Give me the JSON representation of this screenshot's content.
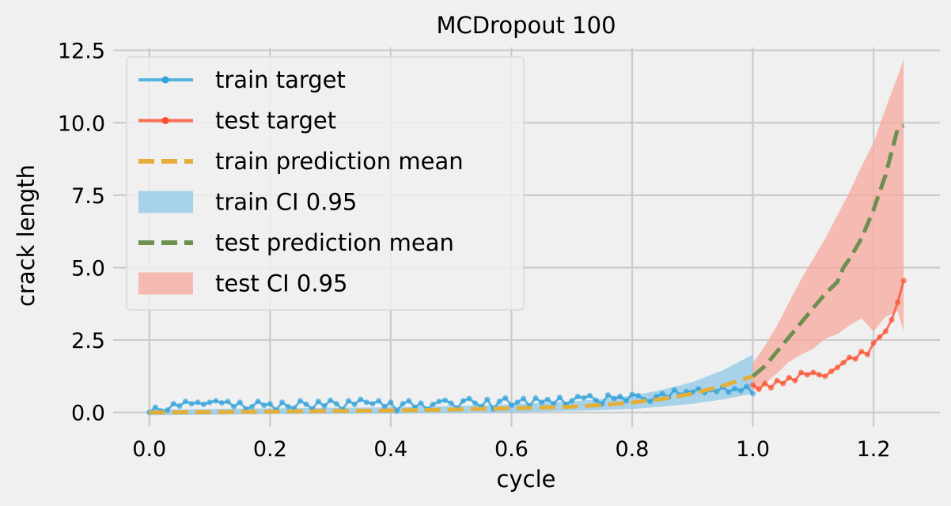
{
  "chart_data": {
    "type": "line",
    "title": "MCDropout 100",
    "xlabel": "cycle",
    "ylabel": "crack length",
    "xlim": [
      -0.06,
      1.31
    ],
    "ylim": [
      -0.5,
      12.6
    ],
    "xticks": [
      "0.0",
      "0.2",
      "0.4",
      "0.6",
      "0.8",
      "1.0",
      "1.2"
    ],
    "xtick_values": [
      0.0,
      0.2,
      0.4,
      0.6,
      0.8,
      1.0,
      1.2
    ],
    "yticks": [
      "0.0",
      "2.5",
      "5.0",
      "7.5",
      "10.0",
      "12.5"
    ],
    "ytick_values": [
      0.0,
      2.5,
      5.0,
      7.5,
      10.0,
      12.5
    ],
    "grid": true,
    "legend_position": "top-left",
    "colors": {
      "train_target": "#30a2da",
      "test_target": "#fc4f30",
      "train_prediction": "#e5ae38",
      "train_ci": "#8fc8e8",
      "test_prediction": "#6d904f",
      "test_ci": "#f7a89c",
      "background": "#f0f0f0",
      "grid": "#cbcbcb"
    },
    "legend": [
      {
        "key": "train_target",
        "label": "train target",
        "style": "line-marker"
      },
      {
        "key": "test_target",
        "label": "test target",
        "style": "line-marker"
      },
      {
        "key": "train_prediction",
        "label": "train prediction mean",
        "style": "dashed"
      },
      {
        "key": "train_ci",
        "label": "train CI 0.95",
        "style": "patch"
      },
      {
        "key": "test_prediction",
        "label": "test prediction mean",
        "style": "dashed"
      },
      {
        "key": "test_ci",
        "label": "test CI 0.95",
        "style": "patch"
      }
    ],
    "series": [
      {
        "key": "train_target",
        "name": "train target",
        "x": [
          0.0,
          0.01,
          0.02,
          0.03,
          0.04,
          0.05,
          0.06,
          0.07,
          0.08,
          0.09,
          0.1,
          0.11,
          0.12,
          0.13,
          0.14,
          0.15,
          0.16,
          0.17,
          0.18,
          0.19,
          0.2,
          0.21,
          0.22,
          0.23,
          0.24,
          0.25,
          0.26,
          0.27,
          0.28,
          0.29,
          0.3,
          0.31,
          0.32,
          0.33,
          0.34,
          0.35,
          0.36,
          0.37,
          0.38,
          0.39,
          0.4,
          0.41,
          0.42,
          0.43,
          0.44,
          0.45,
          0.46,
          0.47,
          0.48,
          0.49,
          0.5,
          0.51,
          0.52,
          0.53,
          0.54,
          0.55,
          0.56,
          0.57,
          0.58,
          0.59,
          0.6,
          0.61,
          0.62,
          0.63,
          0.64,
          0.65,
          0.66,
          0.67,
          0.68,
          0.69,
          0.7,
          0.71,
          0.72,
          0.73,
          0.74,
          0.75,
          0.76,
          0.77,
          0.78,
          0.79,
          0.8,
          0.81,
          0.82,
          0.83,
          0.84,
          0.85,
          0.86,
          0.87,
          0.88,
          0.89,
          0.9,
          0.91,
          0.92,
          0.93,
          0.94,
          0.95,
          0.96,
          0.97,
          0.98,
          0.99,
          1.0
        ],
        "y": [
          0.0,
          0.18,
          0.05,
          0.08,
          0.3,
          0.22,
          0.38,
          0.3,
          0.35,
          0.28,
          0.35,
          0.4,
          0.33,
          0.38,
          0.2,
          0.35,
          0.12,
          0.2,
          0.38,
          0.25,
          0.3,
          0.08,
          0.35,
          0.2,
          0.15,
          0.4,
          0.28,
          0.12,
          0.38,
          0.22,
          0.42,
          0.3,
          0.1,
          0.4,
          0.28,
          0.45,
          0.35,
          0.3,
          0.4,
          0.2,
          0.35,
          0.05,
          0.3,
          0.4,
          0.18,
          0.32,
          0.1,
          0.28,
          0.38,
          0.42,
          0.32,
          0.15,
          0.4,
          0.48,
          0.32,
          0.2,
          0.45,
          0.12,
          0.38,
          0.5,
          0.25,
          0.35,
          0.48,
          0.22,
          0.5,
          0.35,
          0.45,
          0.3,
          0.52,
          0.28,
          0.4,
          0.55,
          0.5,
          0.58,
          0.42,
          0.3,
          0.6,
          0.48,
          0.55,
          0.4,
          0.62,
          0.58,
          0.45,
          0.38,
          0.55,
          0.65,
          0.52,
          0.78,
          0.6,
          0.72,
          0.7,
          0.82,
          0.68,
          0.78,
          0.72,
          0.88,
          0.7,
          0.82,
          0.75,
          0.9,
          0.65
        ]
      },
      {
        "key": "test_target",
        "name": "test target",
        "x": [
          1.0,
          1.01,
          1.02,
          1.03,
          1.04,
          1.05,
          1.06,
          1.07,
          1.08,
          1.09,
          1.1,
          1.11,
          1.12,
          1.13,
          1.14,
          1.15,
          1.16,
          1.17,
          1.18,
          1.19,
          1.2,
          1.21,
          1.22,
          1.23,
          1.24,
          1.25
        ],
        "y": [
          0.95,
          0.8,
          1.0,
          0.85,
          1.1,
          1.0,
          1.2,
          1.1,
          1.38,
          1.3,
          1.38,
          1.3,
          1.25,
          1.42,
          1.55,
          1.72,
          1.9,
          1.85,
          2.1,
          2.0,
          2.4,
          2.6,
          2.8,
          3.2,
          3.8,
          4.55
        ]
      },
      {
        "key": "train_prediction",
        "name": "train prediction mean",
        "x": [
          0.0,
          0.1,
          0.2,
          0.3,
          0.4,
          0.5,
          0.6,
          0.7,
          0.75,
          0.8,
          0.85,
          0.9,
          0.95,
          1.0
        ],
        "y": [
          0.0,
          0.01,
          0.03,
          0.05,
          0.07,
          0.1,
          0.14,
          0.2,
          0.26,
          0.34,
          0.47,
          0.65,
          0.92,
          1.25
        ]
      },
      {
        "key": "test_prediction",
        "name": "test prediction mean",
        "x": [
          1.0,
          1.02,
          1.04,
          1.06,
          1.08,
          1.1,
          1.12,
          1.13,
          1.14,
          1.15,
          1.16,
          1.18,
          1.2,
          1.22,
          1.24,
          1.25
        ],
        "y": [
          1.25,
          1.6,
          2.1,
          2.6,
          3.1,
          3.6,
          4.1,
          4.3,
          4.5,
          5.0,
          5.3,
          6.0,
          7.0,
          8.2,
          9.8,
          9.9
        ]
      }
    ],
    "bands": [
      {
        "key": "train_ci",
        "name": "train CI 0.95",
        "x": [
          0.0,
          0.1,
          0.2,
          0.3,
          0.4,
          0.5,
          0.6,
          0.7,
          0.75,
          0.8,
          0.85,
          0.9,
          0.95,
          1.0
        ],
        "lower": [
          -0.1,
          -0.08,
          -0.06,
          -0.05,
          -0.04,
          -0.02,
          0.0,
          0.05,
          0.08,
          0.12,
          0.2,
          0.3,
          0.45,
          0.65
        ],
        "upper": [
          0.1,
          0.12,
          0.14,
          0.16,
          0.18,
          0.22,
          0.28,
          0.38,
          0.46,
          0.58,
          0.78,
          1.05,
          1.45,
          2.0
        ]
      },
      {
        "key": "test_ci",
        "name": "test CI 0.95",
        "x": [
          1.0,
          1.02,
          1.04,
          1.06,
          1.08,
          1.1,
          1.12,
          1.14,
          1.16,
          1.18,
          1.2,
          1.22,
          1.24,
          1.25
        ],
        "lower": [
          0.75,
          1.0,
          1.35,
          1.75,
          2.0,
          2.2,
          2.55,
          2.7,
          3.0,
          3.25,
          2.8,
          3.3,
          3.5,
          2.8
        ],
        "upper": [
          1.7,
          2.3,
          3.0,
          3.8,
          4.6,
          5.3,
          6.0,
          6.8,
          7.6,
          8.5,
          9.3,
          10.5,
          11.6,
          12.2
        ]
      }
    ]
  }
}
